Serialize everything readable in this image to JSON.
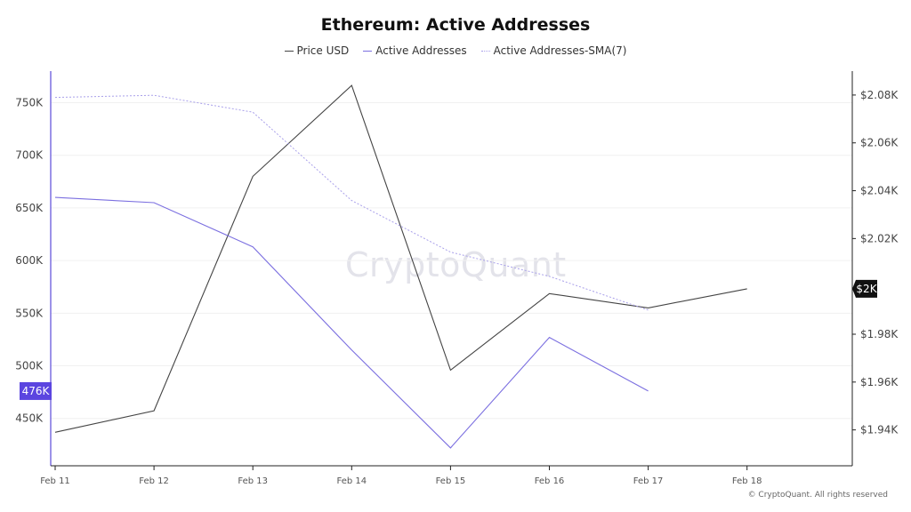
{
  "chart_data": {
    "type": "line",
    "title": "Ethereum: Active Addresses",
    "x": [
      "Feb 11",
      "Feb 12",
      "Feb 13",
      "Feb 14",
      "Feb 15",
      "Feb 16",
      "Feb 17",
      "Feb 18"
    ],
    "series": [
      {
        "name": "Price USD",
        "axis": "right",
        "color": "#444444",
        "style": "solid",
        "values": [
          1.939,
          1.948,
          2.046,
          2.084,
          1.965,
          1.997,
          1.991,
          1.999
        ]
      },
      {
        "name": "Active Addresses",
        "axis": "left",
        "color": "#7b6fe0",
        "style": "solid",
        "values": [
          660000,
          655000,
          613000,
          515000,
          422000,
          527000,
          476000,
          null
        ]
      },
      {
        "name": "Active Addresses-SMA(7)",
        "axis": "left",
        "color": "#a9a0ea",
        "style": "dotted",
        "values": [
          755000,
          757000,
          741000,
          657000,
          608000,
          585000,
          553000,
          null
        ]
      }
    ],
    "y_left": {
      "ticks": [
        450000,
        500000,
        550000,
        600000,
        650000,
        700000,
        750000
      ],
      "tick_labels": [
        "450K",
        "500K",
        "550K",
        "600K",
        "650K",
        "700K",
        "750K"
      ],
      "range": [
        405000,
        780000
      ]
    },
    "y_right": {
      "ticks": [
        1.94,
        1.96,
        1.98,
        2.0,
        2.02,
        2.04,
        2.06,
        2.08
      ],
      "tick_labels": [
        "$1.94K",
        "$1.96K",
        "$1.98K",
        "$2K",
        "$2.02K",
        "$2.04K",
        "$2.06K",
        "$2.08K"
      ],
      "range": [
        1.925,
        2.09
      ]
    },
    "last_value_badges": {
      "left": "476K",
      "right": "$2K"
    },
    "grid": true,
    "legend_position": "top"
  },
  "legend": {
    "price": "Price USD",
    "active": "Active Addresses",
    "sma": "Active Addresses-SMA(7)"
  },
  "watermark": "CryptoQuant",
  "copyright": "© CryptoQuant. All rights reserved",
  "colors": {
    "left_badge": "#5b45e0",
    "right_badge": "#111111"
  }
}
